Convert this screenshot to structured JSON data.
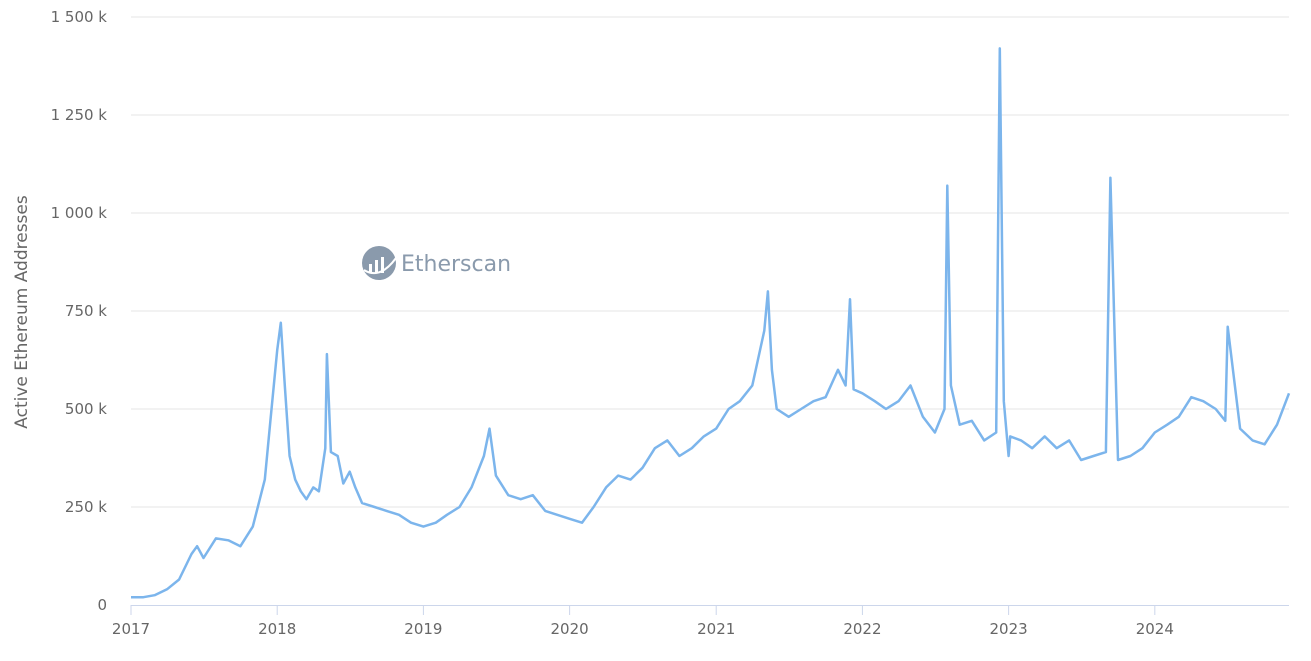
{
  "chart_data": {
    "type": "line",
    "title": "",
    "xlabel": "",
    "ylabel": "Active Ethereum Addresses",
    "xlim": [
      "2017-01-01",
      "2024-12-01"
    ],
    "ylim": [
      0,
      1500000
    ],
    "grid": true,
    "legend": "none",
    "line_color": "#7cb5ec",
    "watermark": "Etherscan",
    "y_ticks": [
      {
        "value": 0,
        "label": "0"
      },
      {
        "value": 250000,
        "label": "250 k"
      },
      {
        "value": 500000,
        "label": "500 k"
      },
      {
        "value": 750000,
        "label": "750 k"
      },
      {
        "value": 1000000,
        "label": "1 000 k"
      },
      {
        "value": 1250000,
        "label": "1 250 k"
      },
      {
        "value": 1500000,
        "label": "1 500 k"
      }
    ],
    "x_ticks": [
      {
        "value": "2017-01-01",
        "label": "2017"
      },
      {
        "value": "2018-01-01",
        "label": "2018"
      },
      {
        "value": "2019-01-01",
        "label": "2019"
      },
      {
        "value": "2020-01-01",
        "label": "2020"
      },
      {
        "value": "2021-01-01",
        "label": "2021"
      },
      {
        "value": "2022-01-01",
        "label": "2022"
      },
      {
        "value": "2023-01-01",
        "label": "2023"
      },
      {
        "value": "2024-01-01",
        "label": "2024"
      }
    ],
    "series": [
      {
        "x": [
          "2017-01-01",
          "2017-02-01",
          "2017-03-01",
          "2017-04-01",
          "2017-05-01",
          "2017-06-01",
          "2017-06-15",
          "2017-07-01",
          "2017-08-01",
          "2017-09-01",
          "2017-10-01",
          "2017-11-01",
          "2017-12-01",
          "2017-12-15",
          "2018-01-01",
          "2018-01-10",
          "2018-01-20",
          "2018-02-01",
          "2018-02-15",
          "2018-03-01",
          "2018-03-15",
          "2018-04-01",
          "2018-04-15",
          "2018-05-01",
          "2018-05-05",
          "2018-05-15",
          "2018-06-01",
          "2018-06-15",
          "2018-07-01",
          "2018-07-15",
          "2018-08-01",
          "2018-09-01",
          "2018-10-01",
          "2018-11-01",
          "2018-12-01",
          "2019-01-01",
          "2019-02-01",
          "2019-03-01",
          "2019-04-01",
          "2019-05-01",
          "2019-06-01",
          "2019-06-15",
          "2019-07-01",
          "2019-08-01",
          "2019-09-01",
          "2019-10-01",
          "2019-11-01",
          "2019-12-01",
          "2020-01-01",
          "2020-02-01",
          "2020-03-01",
          "2020-04-01",
          "2020-05-01",
          "2020-06-01",
          "2020-07-01",
          "2020-08-01",
          "2020-09-01",
          "2020-10-01",
          "2020-11-01",
          "2020-12-01",
          "2021-01-01",
          "2021-02-01",
          "2021-03-01",
          "2021-04-01",
          "2021-05-01",
          "2021-05-10",
          "2021-05-20",
          "2021-06-01",
          "2021-07-01",
          "2021-08-01",
          "2021-09-01",
          "2021-10-01",
          "2021-11-01",
          "2021-11-20",
          "2021-12-01",
          "2021-12-10",
          "2022-01-01",
          "2022-02-01",
          "2022-03-01",
          "2022-04-01",
          "2022-05-01",
          "2022-06-01",
          "2022-07-01",
          "2022-07-25",
          "2022-08-01",
          "2022-08-10",
          "2022-09-01",
          "2022-10-01",
          "2022-11-01",
          "2022-12-01",
          "2022-12-10",
          "2022-12-20",
          "2023-01-01",
          "2023-01-05",
          "2023-02-01",
          "2023-03-01",
          "2023-04-01",
          "2023-05-01",
          "2023-06-01",
          "2023-07-01",
          "2023-08-01",
          "2023-09-01",
          "2023-09-12",
          "2023-10-01",
          "2023-11-01",
          "2023-12-01",
          "2024-01-01",
          "2024-02-01",
          "2024-03-01",
          "2024-04-01",
          "2024-05-01",
          "2024-06-01",
          "2024-06-25",
          "2024-07-01",
          "2024-08-01",
          "2024-09-01",
          "2024-10-01",
          "2024-11-01",
          "2024-12-01"
        ],
        "values": [
          20000,
          20000,
          25000,
          40000,
          65000,
          130000,
          150000,
          120000,
          170000,
          165000,
          150000,
          200000,
          320000,
          470000,
          650000,
          720000,
          560000,
          380000,
          320000,
          290000,
          270000,
          300000,
          290000,
          400000,
          640000,
          390000,
          380000,
          310000,
          340000,
          300000,
          260000,
          250000,
          240000,
          230000,
          210000,
          200000,
          210000,
          230000,
          250000,
          300000,
          380000,
          450000,
          330000,
          280000,
          270000,
          280000,
          240000,
          230000,
          220000,
          210000,
          250000,
          300000,
          330000,
          320000,
          350000,
          400000,
          420000,
          380000,
          400000,
          430000,
          450000,
          500000,
          520000,
          560000,
          700000,
          800000,
          600000,
          500000,
          480000,
          500000,
          520000,
          530000,
          600000,
          560000,
          780000,
          550000,
          540000,
          520000,
          500000,
          520000,
          560000,
          480000,
          440000,
          500000,
          1070000,
          560000,
          460000,
          470000,
          420000,
          440000,
          1420000,
          520000,
          380000,
          430000,
          420000,
          400000,
          430000,
          400000,
          420000,
          370000,
          380000,
          390000,
          1090000,
          370000,
          380000,
          400000,
          440000,
          460000,
          480000,
          530000,
          520000,
          500000,
          470000,
          710000,
          450000,
          420000,
          410000,
          460000,
          540000
        ]
      }
    ]
  }
}
